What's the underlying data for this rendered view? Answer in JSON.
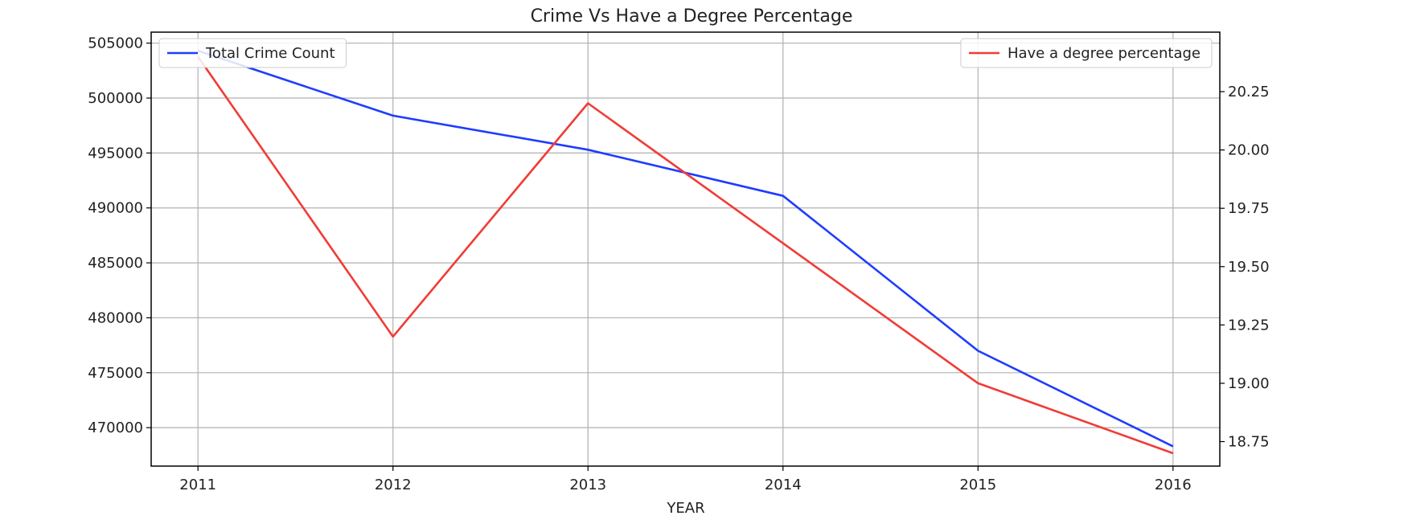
{
  "chart_data": {
    "type": "line",
    "title": "Crime Vs Have a Degree Percentage",
    "xlabel": "YEAR",
    "ylabel": "",
    "y2label": "",
    "x": [
      2011,
      2012,
      2013,
      2014,
      2015,
      2016
    ],
    "xlim": [
      2010.76,
      2016.24
    ],
    "ylim": [
      466500,
      506000
    ],
    "y2lim": [
      18.645,
      20.505
    ],
    "yticks": [
      "470000",
      "475000",
      "480000",
      "485000",
      "490000",
      "495000",
      "500000",
      "505000"
    ],
    "y2ticks": [
      "18.75",
      "19.00",
      "19.25",
      "19.50",
      "19.75",
      "20.00",
      "20.25"
    ],
    "grid": true,
    "series": [
      {
        "name": "Total Crime Count",
        "axis": "left",
        "color": "#1f3cff",
        "values": [
          504300,
          498400,
          495300,
          491100,
          477000,
          468300
        ],
        "legend_position": "upper-left"
      },
      {
        "name": "Have a degree percentage",
        "axis": "right",
        "color": "#f03c36",
        "values": [
          20.4,
          19.2,
          20.2,
          19.6,
          19.0,
          18.7
        ],
        "legend_position": "upper-right"
      }
    ]
  }
}
